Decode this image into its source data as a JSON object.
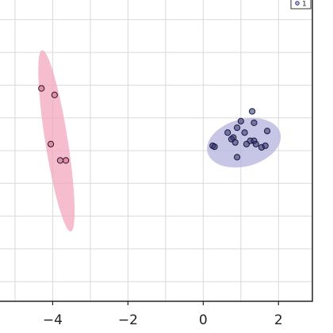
{
  "chart_data": {
    "type": "scatter",
    "title": "",
    "xlabel": "",
    "ylabel": "",
    "xlim": [
      -5.4,
      2.9
    ],
    "ylim": [
      -4.6,
      4.6
    ],
    "grid": true,
    "legend_placement": "top-right",
    "x_ticks": [
      -4,
      -2,
      0,
      2
    ],
    "x_tick_labels": [
      "−4",
      "−2",
      "0",
      "2"
    ],
    "series": [
      {
        "name": "",
        "color": "#e0607e",
        "fill": "#f2a7be",
        "ellipse": {
          "cx": -3.9,
          "cy": 0.3,
          "rx": 0.3,
          "ry": 2.8,
          "angle_deg": -9
        },
        "points": [
          {
            "x": -4.3,
            "y": 1.9
          },
          {
            "x": -3.95,
            "y": 1.7
          },
          {
            "x": -4.05,
            "y": 0.2
          },
          {
            "x": -3.8,
            "y": -0.3
          },
          {
            "x": -3.65,
            "y": -0.3
          }
        ]
      },
      {
        "name": "1",
        "color": "#2b2d7c",
        "fill": "#b4b3de",
        "ellipse": {
          "cx": 1.08,
          "cy": 0.24,
          "rx": 1.0,
          "ry": 0.72,
          "angle_deg": -15
        },
        "points": [
          {
            "x": 0.25,
            "y": 0.15
          },
          {
            "x": 0.3,
            "y": 0.12
          },
          {
            "x": 0.65,
            "y": 0.55
          },
          {
            "x": 0.8,
            "y": 0.4
          },
          {
            "x": 0.75,
            "y": 0.35
          },
          {
            "x": 0.85,
            "y": 0.25
          },
          {
            "x": 0.9,
            "y": 0.7
          },
          {
            "x": 1.0,
            "y": 0.9
          },
          {
            "x": 1.1,
            "y": 0.55
          },
          {
            "x": 1.15,
            "y": 0.2
          },
          {
            "x": 1.25,
            "y": 0.3
          },
          {
            "x": 1.35,
            "y": 0.3
          },
          {
            "x": 1.35,
            "y": 0.85
          },
          {
            "x": 1.3,
            "y": 1.2
          },
          {
            "x": 1.4,
            "y": 0.2
          },
          {
            "x": 1.55,
            "y": 0.1
          },
          {
            "x": 1.7,
            "y": 0.6
          },
          {
            "x": 1.65,
            "y": 0.15
          },
          {
            "x": 0.9,
            "y": -0.2
          }
        ]
      }
    ]
  }
}
